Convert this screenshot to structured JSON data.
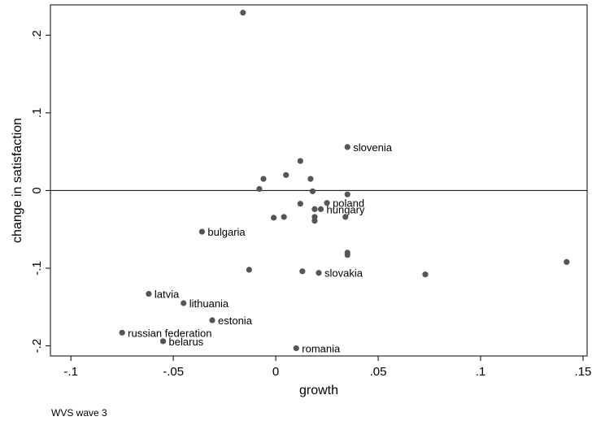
{
  "chart_data": {
    "type": "scatter",
    "xlabel": "growth",
    "ylabel": "change in satisfaction",
    "note": "WVS wave 3",
    "xlim": [
      -0.11,
      0.152
    ],
    "ylim": [
      -0.213,
      0.239
    ],
    "x_ticks": [
      {
        "value": -0.1,
        "label": "-.1"
      },
      {
        "value": -0.05,
        "label": "-.05"
      },
      {
        "value": 0,
        "label": "0"
      },
      {
        "value": 0.05,
        "label": ".05"
      },
      {
        "value": 0.1,
        "label": ".1"
      },
      {
        "value": 0.15,
        "label": ".15"
      }
    ],
    "y_ticks": [
      {
        "value": -0.2,
        "label": "-.2"
      },
      {
        "value": -0.1,
        "label": "-.1"
      },
      {
        "value": 0,
        "label": "0"
      },
      {
        "value": 0.1,
        "label": ".1"
      },
      {
        "value": 0.2,
        "label": ".2"
      }
    ],
    "reference_line_y": 0,
    "grid": false,
    "marker_color": "#555555",
    "points": [
      {
        "x": -0.016,
        "y": 0.229,
        "label": ""
      },
      {
        "x": 0.035,
        "y": 0.056,
        "label": "slovenia"
      },
      {
        "x": 0.012,
        "y": 0.038,
        "label": ""
      },
      {
        "x": -0.006,
        "y": 0.015,
        "label": ""
      },
      {
        "x": 0.005,
        "y": 0.02,
        "label": ""
      },
      {
        "x": 0.017,
        "y": 0.015,
        "label": ""
      },
      {
        "x": -0.008,
        "y": 0.002,
        "label": ""
      },
      {
        "x": 0.018,
        "y": -0.001,
        "label": ""
      },
      {
        "x": 0.035,
        "y": -0.005,
        "label": ""
      },
      {
        "x": 0.012,
        "y": -0.017,
        "label": ""
      },
      {
        "x": 0.025,
        "y": -0.016,
        "label": "poland"
      },
      {
        "x": 0.019,
        "y": -0.024,
        "label": ""
      },
      {
        "x": 0.022,
        "y": -0.024,
        "label": "hungary"
      },
      {
        "x": -0.001,
        "y": -0.035,
        "label": ""
      },
      {
        "x": 0.004,
        "y": -0.034,
        "label": ""
      },
      {
        "x": 0.019,
        "y": -0.034,
        "label": ""
      },
      {
        "x": 0.019,
        "y": -0.039,
        "label": ""
      },
      {
        "x": 0.034,
        "y": -0.034,
        "label": ""
      },
      {
        "x": -0.036,
        "y": -0.053,
        "label": "bulgaria"
      },
      {
        "x": 0.035,
        "y": -0.08,
        "label": ""
      },
      {
        "x": 0.035,
        "y": -0.083,
        "label": ""
      },
      {
        "x": 0.142,
        "y": -0.092,
        "label": ""
      },
      {
        "x": -0.013,
        "y": -0.102,
        "label": ""
      },
      {
        "x": 0.013,
        "y": -0.104,
        "label": ""
      },
      {
        "x": 0.021,
        "y": -0.106,
        "label": "slovakia"
      },
      {
        "x": 0.073,
        "y": -0.108,
        "label": ""
      },
      {
        "x": -0.062,
        "y": -0.133,
        "label": "latvia"
      },
      {
        "x": -0.045,
        "y": -0.145,
        "label": "lithuania"
      },
      {
        "x": -0.031,
        "y": -0.167,
        "label": "estonia"
      },
      {
        "x": -0.075,
        "y": -0.183,
        "label": "russian federation"
      },
      {
        "x": -0.055,
        "y": -0.194,
        "label": "belarus"
      },
      {
        "x": 0.01,
        "y": -0.203,
        "label": "romania"
      }
    ]
  }
}
